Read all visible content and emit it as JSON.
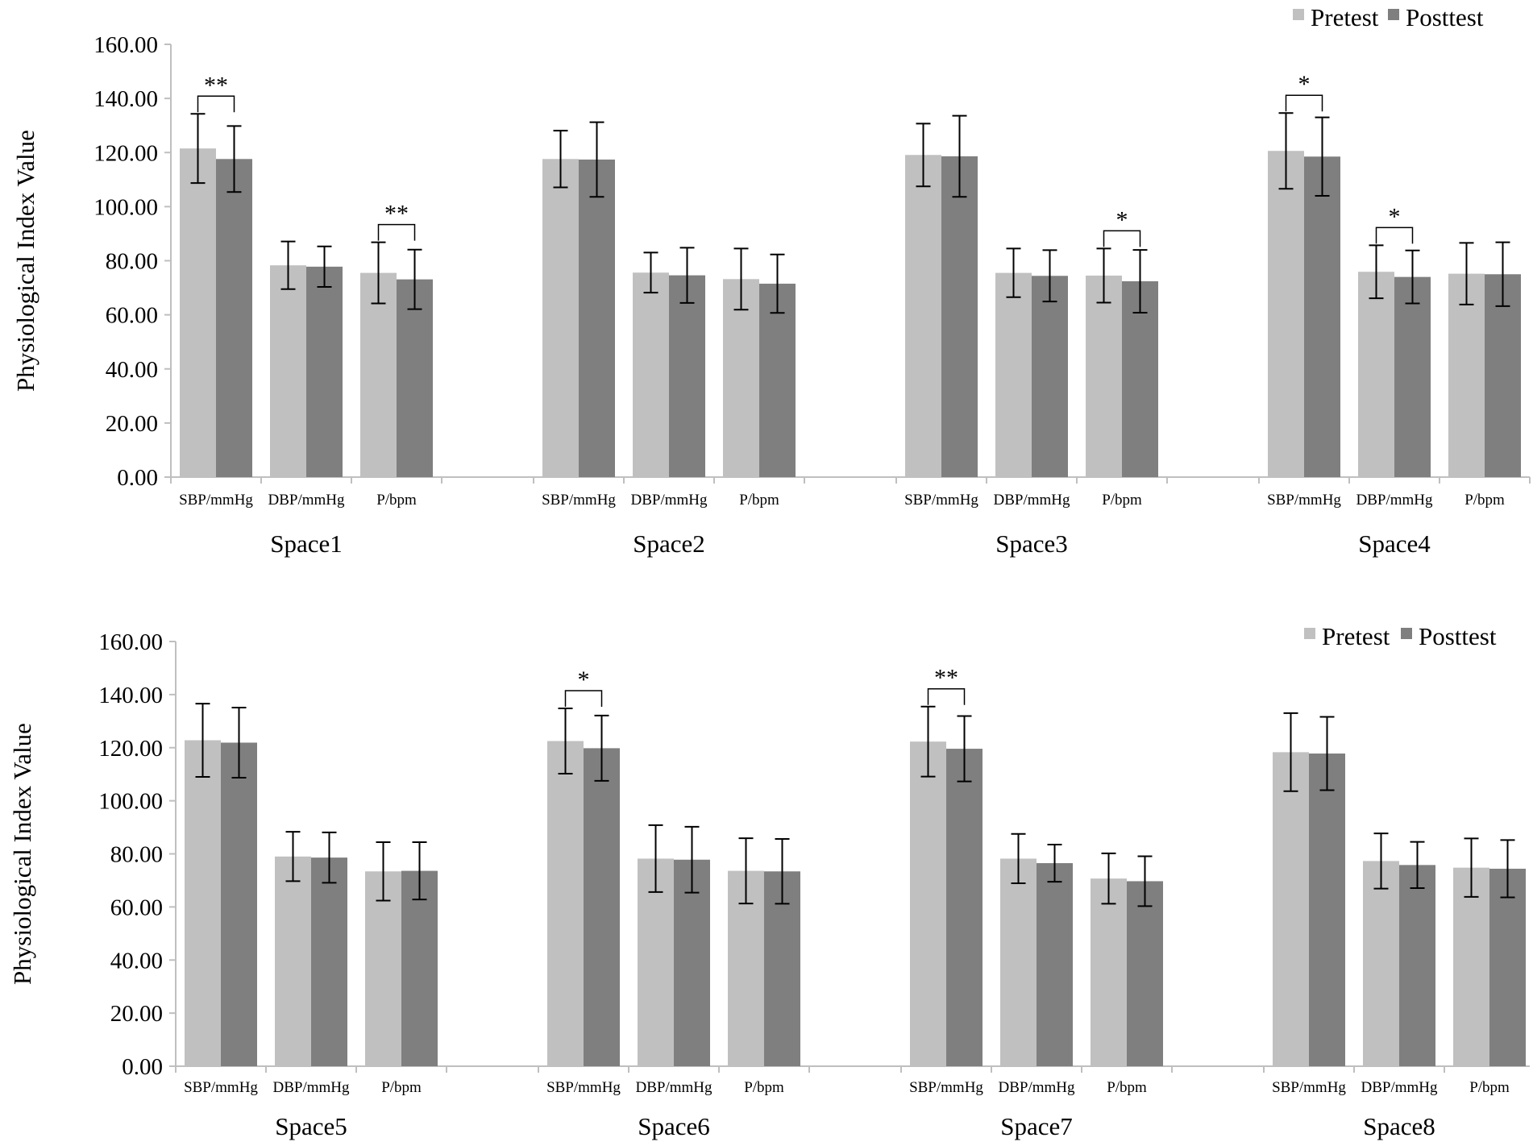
{
  "chart_data": [
    {
      "type": "bar",
      "ylabel": "Physiological Index Value",
      "ylim": [
        0,
        160
      ],
      "yticks": [
        "0.00",
        "20.00",
        "40.00",
        "60.00",
        "80.00",
        "100.00",
        "120.00",
        "140.00",
        "160.00"
      ],
      "legend": [
        "Pretest",
        "Posttest"
      ],
      "legend_position": "top-right",
      "groups": [
        {
          "name": "Space1",
          "categories": [
            "SBP/mmHg",
            "DBP/mmHg",
            "P/bpm"
          ],
          "pretest": [
            121.5,
            78.3,
            75.5
          ],
          "pretest_err": [
            12.8,
            8.8,
            11.3
          ],
          "posttest": [
            117.6,
            77.8,
            73.1
          ],
          "posttest_err": [
            12.2,
            7.5,
            11.0
          ],
          "sig": [
            {
              "cat": 0,
              "label": "**"
            },
            {
              "cat": 2,
              "label": "**"
            }
          ]
        },
        {
          "name": "Space2",
          "categories": [
            "SBP/mmHg",
            "DBP/mmHg",
            "P/bpm"
          ],
          "pretest": [
            117.6,
            75.6,
            73.2
          ],
          "pretest_err": [
            10.5,
            7.4,
            11.3
          ],
          "posttest": [
            117.4,
            74.6,
            71.5
          ],
          "posttest_err": [
            13.8,
            10.2,
            10.8
          ],
          "sig": []
        },
        {
          "name": "Space3",
          "categories": [
            "SBP/mmHg",
            "DBP/mmHg",
            "P/bpm"
          ],
          "pretest": [
            119.1,
            75.5,
            74.5
          ],
          "pretest_err": [
            11.6,
            9.0,
            10.0
          ],
          "posttest": [
            118.6,
            74.4,
            72.4
          ],
          "posttest_err": [
            15.0,
            9.5,
            11.6
          ],
          "sig": [
            {
              "cat": 2,
              "label": "*"
            }
          ]
        },
        {
          "name": "Space4",
          "categories": [
            "SBP/mmHg",
            "DBP/mmHg",
            "P/bpm"
          ],
          "pretest": [
            120.6,
            75.9,
            75.2
          ],
          "pretest_err": [
            14.0,
            9.8,
            11.4
          ],
          "posttest": [
            118.5,
            74.0,
            75.0
          ],
          "posttest_err": [
            14.5,
            9.8,
            11.8
          ],
          "sig": [
            {
              "cat": 0,
              "label": "*"
            },
            {
              "cat": 1,
              "label": "*"
            }
          ]
        }
      ]
    },
    {
      "type": "bar",
      "ylabel": "Physiological Index Value",
      "ylim": [
        0,
        160
      ],
      "yticks": [
        "0.00",
        "20.00",
        "40.00",
        "60.00",
        "80.00",
        "100.00",
        "120.00",
        "140.00",
        "160.00"
      ],
      "legend": [
        "Pretest",
        "Posttest"
      ],
      "legend_position": "top-right",
      "groups": [
        {
          "name": "Space5",
          "categories": [
            "SBP/mmHg",
            "DBP/mmHg",
            "P/bpm"
          ],
          "pretest": [
            122.8,
            79.0,
            73.4
          ],
          "pretest_err": [
            13.8,
            9.3,
            11.0
          ],
          "posttest": [
            121.9,
            78.6,
            73.6
          ],
          "posttest_err": [
            13.2,
            9.5,
            10.8
          ],
          "sig": []
        },
        {
          "name": "Space6",
          "categories": [
            "SBP/mmHg",
            "DBP/mmHg",
            "P/bpm"
          ],
          "pretest": [
            122.5,
            78.2,
            73.6
          ],
          "pretest_err": [
            12.3,
            12.6,
            12.3
          ],
          "posttest": [
            119.8,
            77.8,
            73.4
          ],
          "posttest_err": [
            12.3,
            12.4,
            12.2
          ],
          "sig": [
            {
              "cat": 0,
              "label": "*"
            }
          ]
        },
        {
          "name": "Space7",
          "categories": [
            "SBP/mmHg",
            "DBP/mmHg",
            "P/bpm"
          ],
          "pretest": [
            122.3,
            78.2,
            70.7
          ],
          "pretest_err": [
            13.2,
            9.3,
            9.5
          ],
          "posttest": [
            119.6,
            76.5,
            69.7
          ],
          "posttest_err": [
            12.3,
            7.0,
            9.4
          ],
          "sig": [
            {
              "cat": 0,
              "label": "**"
            }
          ]
        },
        {
          "name": "Space8",
          "categories": [
            "SBP/mmHg",
            "DBP/mmHg",
            "P/bpm"
          ],
          "pretest": [
            118.3,
            77.3,
            74.8
          ],
          "pretest_err": [
            14.7,
            10.4,
            11.0
          ],
          "posttest": [
            117.8,
            75.8,
            74.4
          ],
          "posttest_err": [
            13.8,
            8.7,
            10.8
          ],
          "sig": []
        }
      ]
    }
  ],
  "colors": {
    "pretest": "#c0c0c0",
    "posttest": "#7f7f7f",
    "axis": "#bfbfbf",
    "ink": "#000000"
  }
}
